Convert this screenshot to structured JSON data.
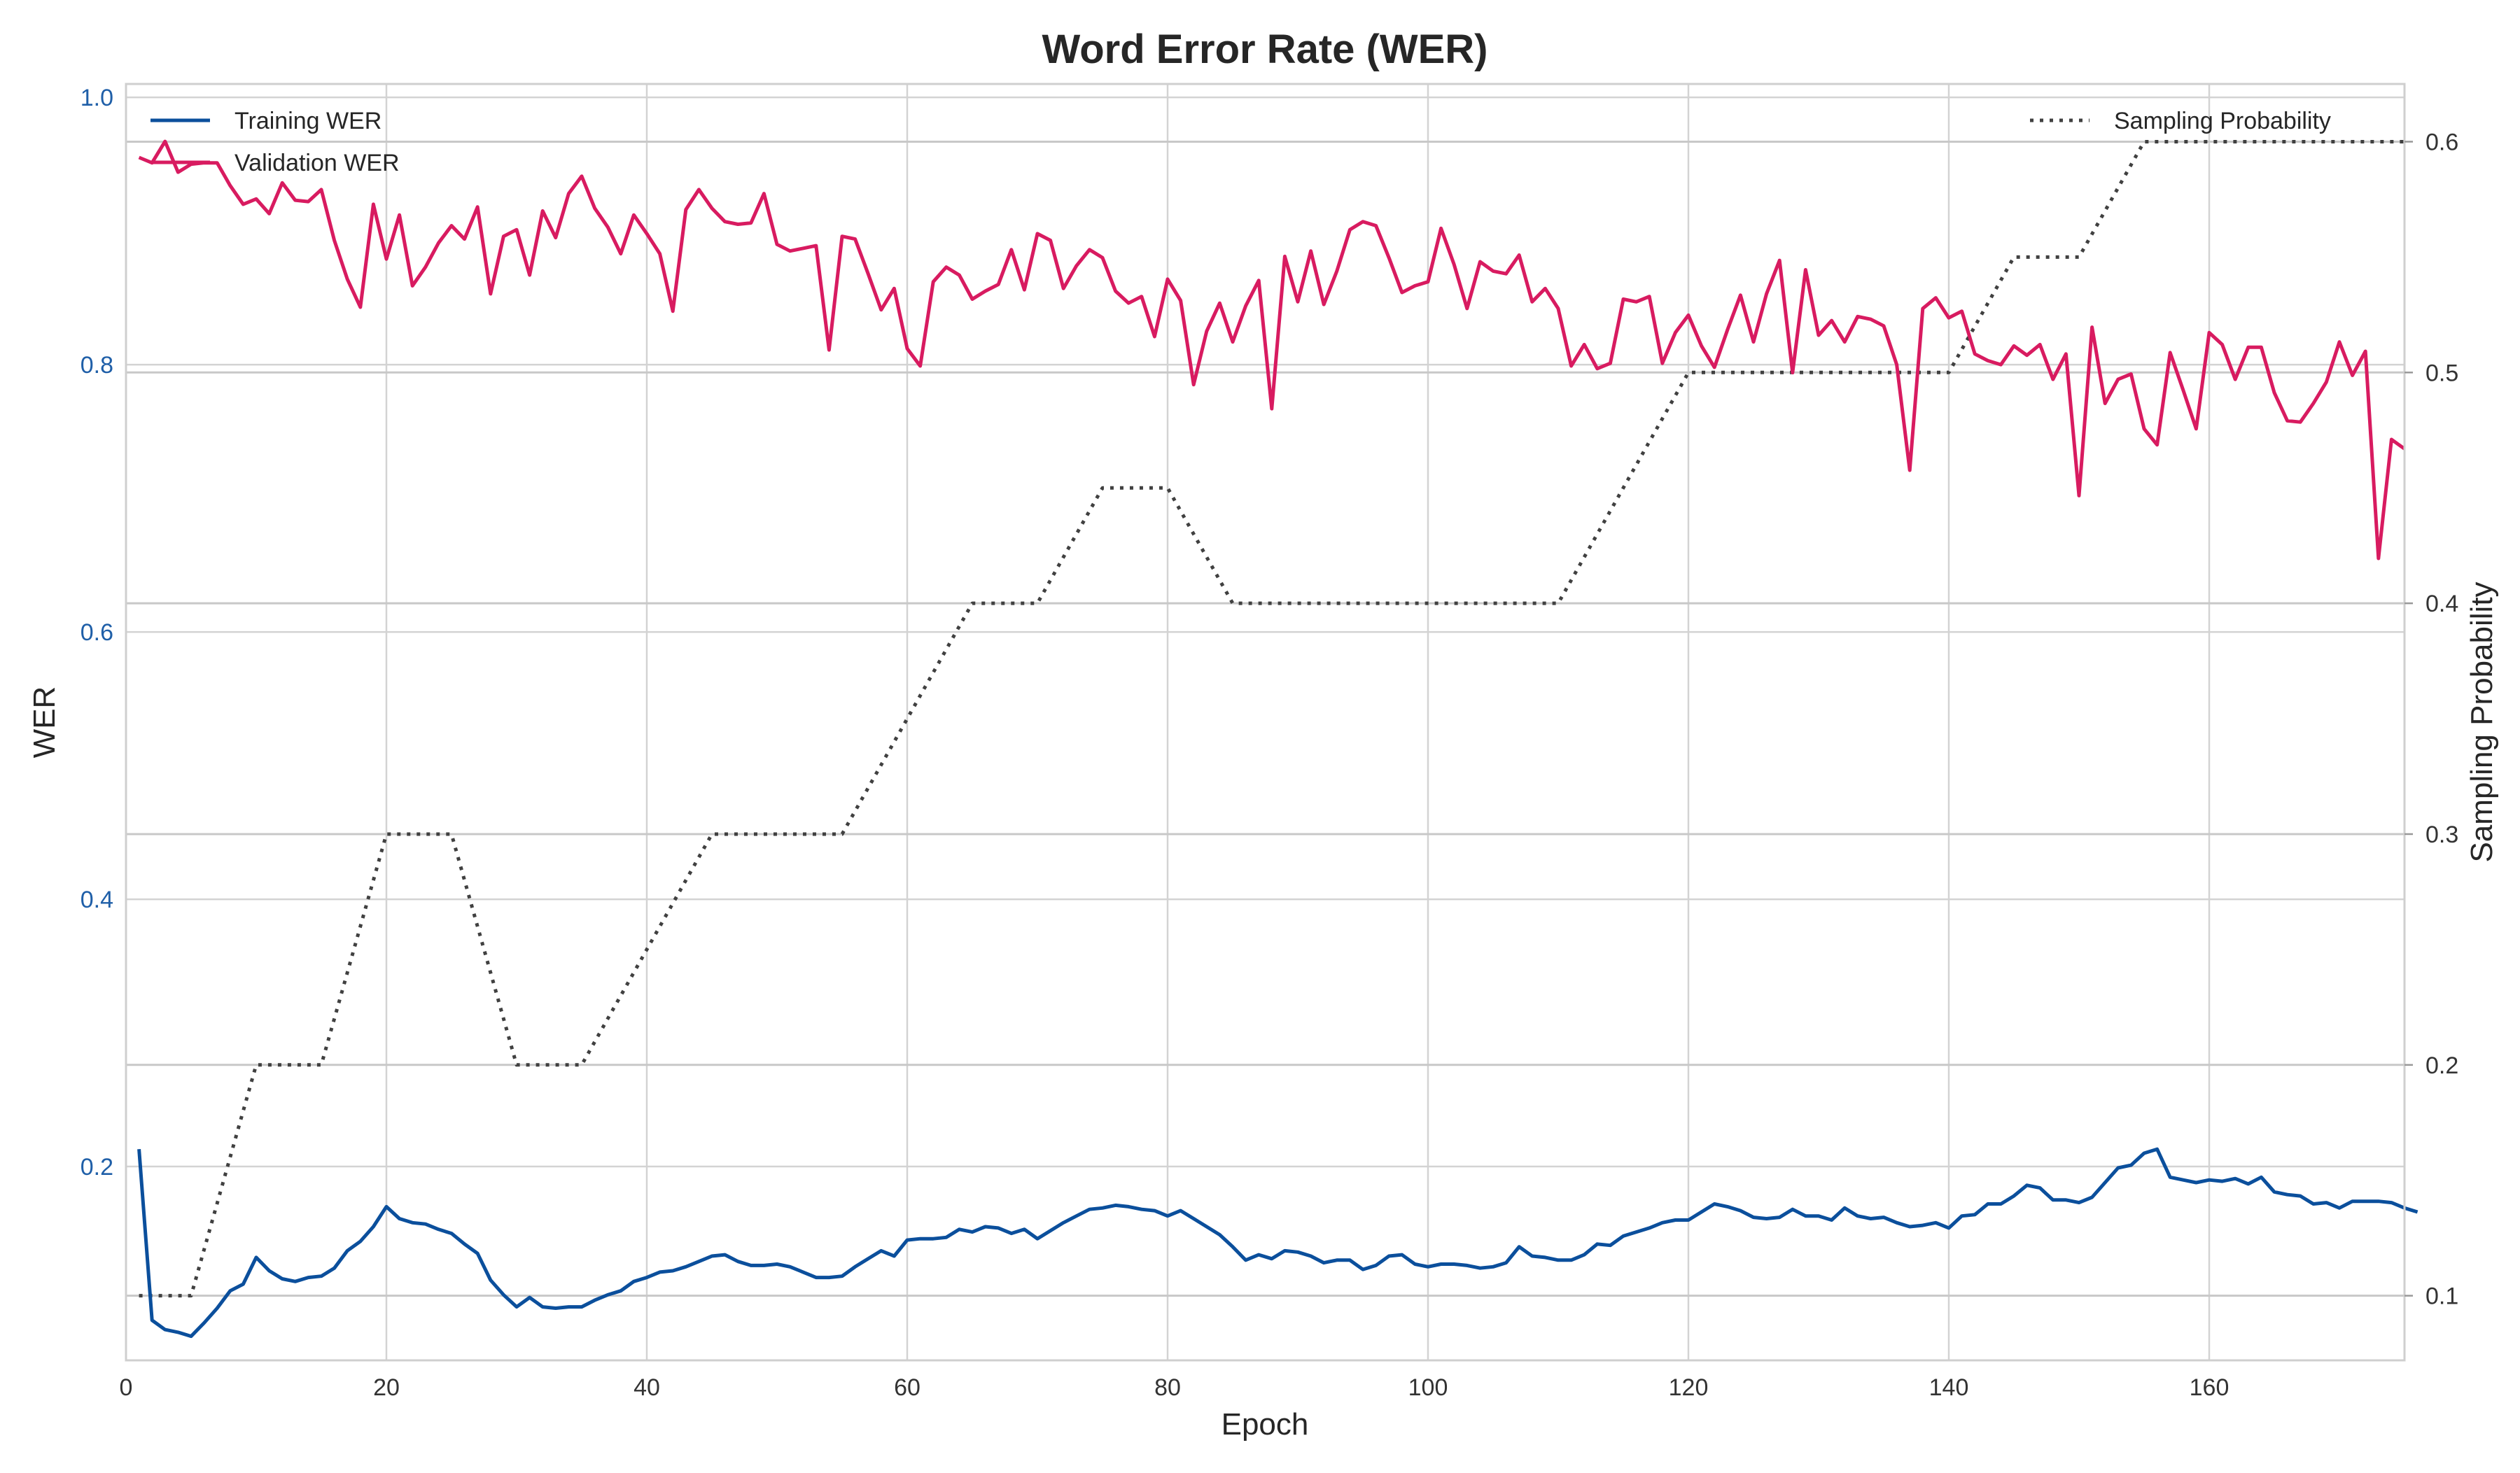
{
  "chart_data": {
    "type": "line",
    "title": "Word Error Rate (WER)",
    "xlabel": "Epoch",
    "ylabel": "WER",
    "y2label": "Sampling Probability",
    "xlim": [
      0,
      175
    ],
    "ylim": [
      0.055,
      1.01
    ],
    "y2lim": [
      0.072,
      0.625
    ],
    "x_ticks": [
      0,
      20,
      40,
      60,
      80,
      100,
      120,
      140,
      160
    ],
    "y_ticks": [
      0.2,
      0.4,
      0.6,
      0.8,
      1.0
    ],
    "y_tick_labels": [
      "0.2",
      "0.4",
      "0.6",
      "0.8",
      "1.0"
    ],
    "y2_ticks": [
      0.1,
      0.2,
      0.3,
      0.4,
      0.5,
      0.6
    ],
    "y2_tick_labels": [
      "0.1",
      "0.2",
      "0.3",
      "0.4",
      "0.5",
      "0.6"
    ],
    "grid": true,
    "legend_left": "top-left",
    "legend_right": "top-right",
    "colors": {
      "training": "#0b4f9c",
      "validation": "#d81b60",
      "sampling": "#404040",
      "grid": "#d3d3d3",
      "left_ticks": "#1f5fa8"
    },
    "series": [
      {
        "name": "Training WER",
        "axis": "left",
        "x_start": 1,
        "values": [
          0.213,
          0.085,
          0.078,
          0.076,
          0.073,
          0.083,
          0.094,
          0.107,
          0.112,
          0.132,
          0.122,
          0.116,
          0.114,
          0.117,
          0.118,
          0.124,
          0.137,
          0.144,
          0.155,
          0.17,
          0.161,
          0.158,
          0.157,
          0.153,
          0.15,
          0.142,
          0.135,
          0.115,
          0.104,
          0.095,
          0.102,
          0.095,
          0.094,
          0.095,
          0.095,
          0.1,
          0.104,
          0.107,
          0.114,
          0.117,
          0.121,
          0.122,
          0.125,
          0.129,
          0.133,
          0.134,
          0.129,
          0.126,
          0.126,
          0.127,
          0.125,
          0.121,
          0.117,
          0.117,
          0.118,
          0.125,
          0.131,
          0.137,
          0.133,
          0.145,
          0.146,
          0.146,
          0.147,
          0.153,
          0.151,
          0.155,
          0.154,
          0.15,
          0.153,
          0.146,
          0.152,
          0.158,
          0.163,
          0.168,
          0.169,
          0.171,
          0.17,
          0.168,
          0.167,
          0.163,
          0.167,
          0.161,
          0.155,
          0.149,
          0.14,
          0.13,
          0.134,
          0.131,
          0.137,
          0.136,
          0.133,
          0.128,
          0.13,
          0.13,
          0.123,
          0.126,
          0.133,
          0.134,
          0.127,
          0.125,
          0.127,
          0.127,
          0.126,
          0.124,
          0.125,
          0.128,
          0.14,
          0.133,
          0.132,
          0.13,
          0.13,
          0.134,
          0.142,
          0.141,
          0.148,
          0.151,
          0.154,
          0.158,
          0.16,
          0.16,
          0.166,
          0.172,
          0.17,
          0.167,
          0.162,
          0.161,
          0.162,
          0.168,
          0.163,
          0.163,
          0.16,
          0.169,
          0.163,
          0.161,
          0.162,
          0.158,
          0.155,
          0.156,
          0.158,
          0.154,
          0.163,
          0.164,
          0.172,
          0.172,
          0.178,
          0.186,
          0.184,
          0.175,
          0.175,
          0.173,
          0.177,
          0.188,
          0.199,
          0.201,
          0.21,
          0.213,
          0.192,
          0.19,
          0.188,
          0.19,
          0.189,
          0.191,
          0.187,
          0.192,
          0.181,
          0.179,
          0.178,
          0.172,
          0.173,
          0.169,
          0.174,
          0.174,
          0.174,
          0.173,
          0.169,
          0.166
        ]
      },
      {
        "name": "Validation WER",
        "axis": "left",
        "x_start": 1,
        "values": [
          0.955,
          0.951,
          0.967,
          0.944,
          0.95,
          0.951,
          0.951,
          0.934,
          0.92,
          0.924,
          0.913,
          0.936,
          0.923,
          0.922,
          0.931,
          0.893,
          0.864,
          0.843,
          0.92,
          0.879,
          0.912,
          0.859,
          0.873,
          0.891,
          0.904,
          0.894,
          0.918,
          0.853,
          0.896,
          0.901,
          0.867,
          0.915,
          0.895,
          0.928,
          0.941,
          0.917,
          0.903,
          0.883,
          0.912,
          0.898,
          0.883,
          0.84,
          0.916,
          0.931,
          0.917,
          0.907,
          0.905,
          0.906,
          0.928,
          0.89,
          0.885,
          0.887,
          0.889,
          0.811,
          0.896,
          0.894,
          0.868,
          0.841,
          0.857,
          0.812,
          0.799,
          0.862,
          0.873,
          0.867,
          0.849,
          0.855,
          0.86,
          0.886,
          0.856,
          0.898,
          0.893,
          0.857,
          0.874,
          0.886,
          0.88,
          0.855,
          0.846,
          0.851,
          0.821,
          0.864,
          0.848,
          0.785,
          0.825,
          0.846,
          0.817,
          0.844,
          0.863,
          0.767,
          0.881,
          0.847,
          0.885,
          0.845,
          0.87,
          0.901,
          0.907,
          0.904,
          0.88,
          0.854,
          0.859,
          0.862,
          0.902,
          0.875,
          0.842,
          0.877,
          0.87,
          0.868,
          0.882,
          0.847,
          0.857,
          0.842,
          0.799,
          0.815,
          0.797,
          0.801,
          0.849,
          0.847,
          0.851,
          0.801,
          0.824,
          0.837,
          0.814,
          0.798,
          0.826,
          0.852,
          0.817,
          0.853,
          0.878,
          0.794,
          0.871,
          0.822,
          0.833,
          0.817,
          0.836,
          0.834,
          0.829,
          0.8,
          0.721,
          0.842,
          0.85,
          0.835,
          0.84,
          0.808,
          0.803,
          0.8,
          0.814,
          0.807,
          0.815,
          0.789,
          0.808,
          0.702,
          0.828,
          0.771,
          0.789,
          0.793,
          0.752,
          0.74,
          0.809,
          0.781,
          0.752,
          0.824,
          0.815,
          0.789,
          0.813,
          0.813,
          0.779,
          0.758,
          0.757,
          0.771,
          0.787,
          0.817,
          0.792,
          0.81,
          0.655,
          0.744,
          0.737
        ]
      },
      {
        "name": "Sampling Probability",
        "axis": "right",
        "style": "dotted",
        "points": [
          [
            1,
            0.1
          ],
          [
            5,
            0.1
          ],
          [
            10,
            0.2
          ],
          [
            15,
            0.2
          ],
          [
            20,
            0.3
          ],
          [
            25,
            0.3
          ],
          [
            30,
            0.2
          ],
          [
            35,
            0.2
          ],
          [
            45,
            0.3
          ],
          [
            55,
            0.3
          ],
          [
            65,
            0.4
          ],
          [
            70,
            0.4
          ],
          [
            75,
            0.45
          ],
          [
            80,
            0.45
          ],
          [
            85,
            0.4
          ],
          [
            110,
            0.4
          ],
          [
            120,
            0.5
          ],
          [
            140,
            0.5
          ],
          [
            145,
            0.55
          ],
          [
            150,
            0.55
          ],
          [
            155,
            0.6
          ],
          [
            175,
            0.6
          ]
        ]
      }
    ]
  }
}
